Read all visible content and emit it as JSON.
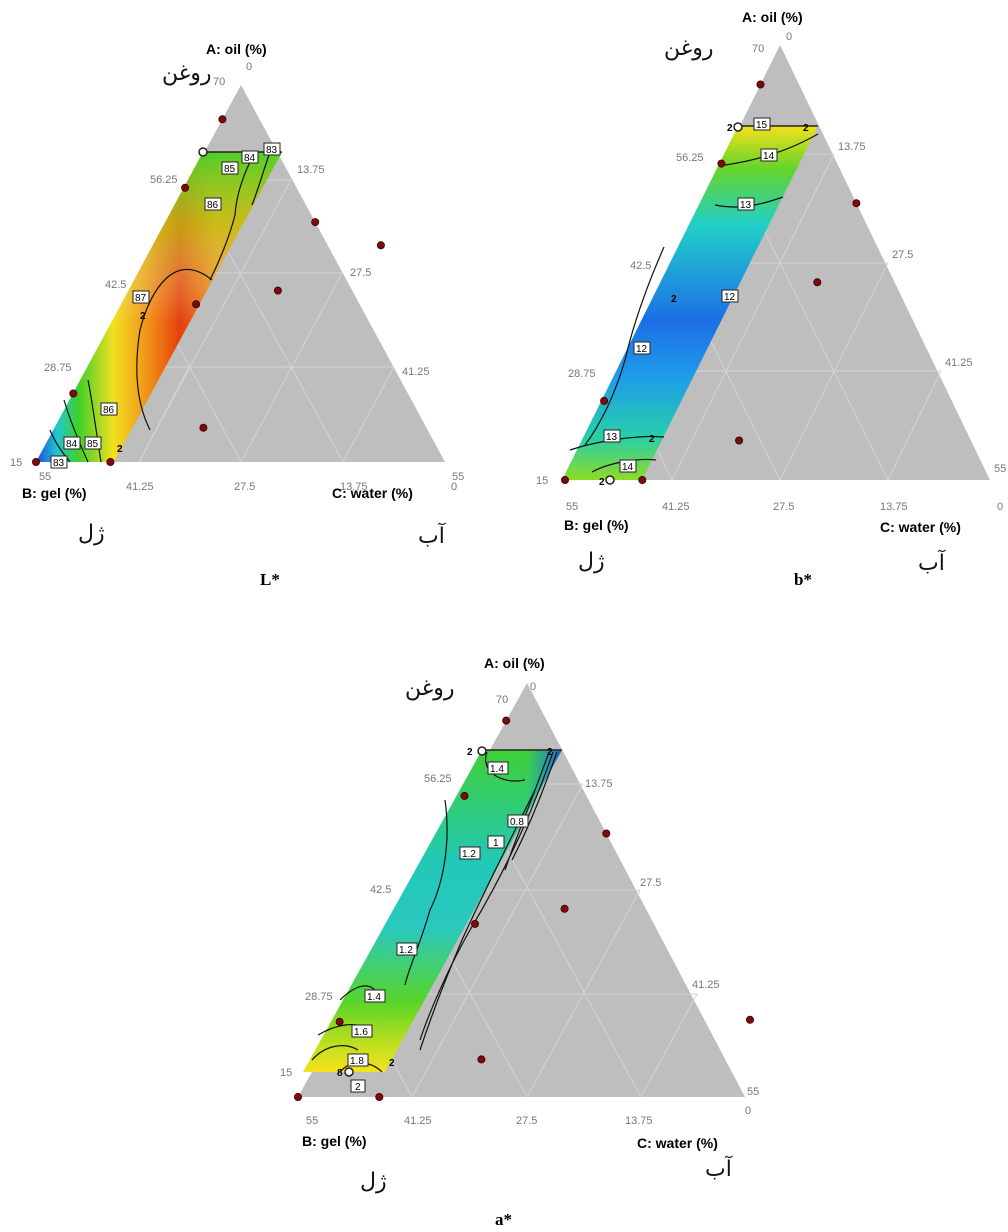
{
  "figure": {
    "panels": [
      {
        "id": "L",
        "caption": "L*",
        "axes": {
          "a_label": "A: oil (%)",
          "b_label": "B: gel (%)",
          "c_label": "C: water (%)",
          "a_persian": "روغن",
          "b_persian": "ژل",
          "c_persian": "آب",
          "a_ticks": [
            "70",
            "56.25",
            "42.5",
            "28.75",
            "15"
          ],
          "b_ticks": [
            "55",
            "41.25",
            "27.5",
            "13.75",
            "0"
          ],
          "c_ticks": [
            "0",
            "13.75",
            "27.5",
            "41.25",
            "55"
          ]
        },
        "contour_labels": [
          "83",
          "84",
          "85",
          "86",
          "87",
          "86",
          "84",
          "85",
          "83"
        ],
        "point_labels": [
          "2",
          "2"
        ]
      },
      {
        "id": "b",
        "caption": "b*",
        "axes": {
          "a_label": "A: oil (%)",
          "b_label": "B: gel (%)",
          "c_label": "C: water (%)",
          "a_persian": "روغن",
          "b_persian": "ژل",
          "c_persian": "آب",
          "a_ticks": [
            "70",
            "56.25",
            "42.5",
            "28.75",
            "15"
          ],
          "b_ticks": [
            "55",
            "41.25",
            "27.5",
            "13.75",
            "0"
          ],
          "c_ticks": [
            "0",
            "13.75",
            "27.5",
            "41.25",
            "55"
          ]
        },
        "contour_labels": [
          "15",
          "14",
          "13",
          "12",
          "12",
          "13",
          "14"
        ],
        "point_labels": [
          "2",
          "2",
          "2",
          "2",
          "2"
        ]
      },
      {
        "id": "a",
        "caption": "a*",
        "axes": {
          "a_label": "A: oil (%)",
          "b_label": "B: gel (%)",
          "c_label": "C: water (%)",
          "a_persian": "روغن",
          "b_persian": "ژل",
          "c_persian": "آب",
          "a_ticks": [
            "70",
            "56.25",
            "42.5",
            "28.75",
            "15"
          ],
          "b_ticks": [
            "55",
            "41.25",
            "27.5",
            "13.75",
            "0"
          ],
          "c_ticks": [
            "0",
            "13.75",
            "27.5",
            "41.25",
            "55"
          ]
        },
        "contour_labels": [
          "1.4",
          "0.8",
          "1.2",
          "1",
          "1.2",
          "1.4",
          "1.6",
          "1.8",
          "2"
        ],
        "point_labels": [
          "2",
          "2",
          "2",
          "8"
        ]
      }
    ]
  },
  "chart_data": [
    {
      "type": "heatmap",
      "subtype": "ternary contour (mixture design)",
      "title": "L*",
      "components": [
        "A: oil (%)",
        "B: gel (%)",
        "C: water (%)"
      ],
      "ranges": {
        "A": [
          15,
          70
        ],
        "B": [
          0,
          55
        ],
        "C": [
          0,
          55
        ]
      },
      "feasible_region": {
        "A": [
          15,
          65
        ],
        "C_max": 20
      },
      "contour_levels": [
        83,
        84,
        85,
        86,
        87
      ],
      "colormap": "blue-green-yellow-red",
      "design_points": [
        {
          "A": 65,
          "B": 35,
          "C": 0
        },
        {
          "A": 65,
          "B": 15,
          "C": 20
        },
        {
          "A": 55,
          "B": 45,
          "C": 0
        },
        {
          "A": 50,
          "B": 30,
          "C": 20
        },
        {
          "A": 40,
          "B": 40,
          "C": 20
        },
        {
          "A": 38,
          "B": 52,
          "C": 10
        },
        {
          "A": 25,
          "B": 75,
          "C": 0
        },
        {
          "A": 20,
          "B": 60,
          "C": 20
        },
        {
          "A": 15,
          "B": 85,
          "C": 0
        },
        {
          "A": 15,
          "B": 75,
          "C": 10
        }
      ]
    },
    {
      "type": "heatmap",
      "subtype": "ternary contour (mixture design)",
      "title": "b*",
      "components": [
        "A: oil (%)",
        "B: gel (%)",
        "C: water (%)"
      ],
      "ranges": {
        "A": [
          15,
          70
        ],
        "B": [
          0,
          55
        ],
        "C": [
          0,
          55
        ]
      },
      "feasible_region": {
        "A": [
          15,
          65
        ],
        "C_max": 20
      },
      "contour_levels": [
        12,
        13,
        14,
        15
      ],
      "colormap": "blue-green-yellow-red",
      "design_points": [
        {
          "A": 65,
          "B": 35,
          "C": 0
        },
        {
          "A": 65,
          "B": 15,
          "C": 20
        },
        {
          "A": 55,
          "B": 45,
          "C": 0
        },
        {
          "A": 50,
          "B": 30,
          "C": 20
        },
        {
          "A": 40,
          "B": 40,
          "C": 20
        },
        {
          "A": 38,
          "B": 52,
          "C": 10
        },
        {
          "A": 25,
          "B": 75,
          "C": 0
        },
        {
          "A": 20,
          "B": 60,
          "C": 20
        },
        {
          "A": 15,
          "B": 85,
          "C": 0
        },
        {
          "A": 15,
          "B": 75,
          "C": 10
        }
      ]
    },
    {
      "type": "heatmap",
      "subtype": "ternary contour (mixture design)",
      "title": "a*",
      "components": [
        "A: oil (%)",
        "B: gel (%)",
        "C: water (%)"
      ],
      "ranges": {
        "A": [
          15,
          70
        ],
        "B": [
          0,
          55
        ],
        "C": [
          0,
          55
        ]
      },
      "feasible_region": {
        "A": [
          15,
          65
        ],
        "C_max": 20
      },
      "contour_levels": [
        0.8,
        1,
        1.2,
        1.4,
        1.6,
        1.8,
        2
      ],
      "colormap": "blue-green-yellow-red",
      "design_points": [
        {
          "A": 65,
          "B": 35,
          "C": 0
        },
        {
          "A": 65,
          "B": 15,
          "C": 20
        },
        {
          "A": 55,
          "B": 45,
          "C": 0
        },
        {
          "A": 50,
          "B": 30,
          "C": 20
        },
        {
          "A": 40,
          "B": 40,
          "C": 20
        },
        {
          "A": 38,
          "B": 52,
          "C": 10
        },
        {
          "A": 25,
          "B": 75,
          "C": 0
        },
        {
          "A": 20,
          "B": 60,
          "C": 20
        },
        {
          "A": 15,
          "B": 85,
          "C": 0
        },
        {
          "A": 15,
          "B": 75,
          "C": 10
        }
      ]
    }
  ],
  "colors": {
    "triangle_fill": "#bebebe",
    "grid": "#d4d4d4",
    "design_point": "#7a0c0c",
    "contour_line": "#111111",
    "blue": "#1f3fd8",
    "cyan": "#1fc6d6",
    "green": "#39d12a",
    "yellow": "#f3e21a",
    "orange": "#f29018",
    "red": "#e43b0b"
  }
}
